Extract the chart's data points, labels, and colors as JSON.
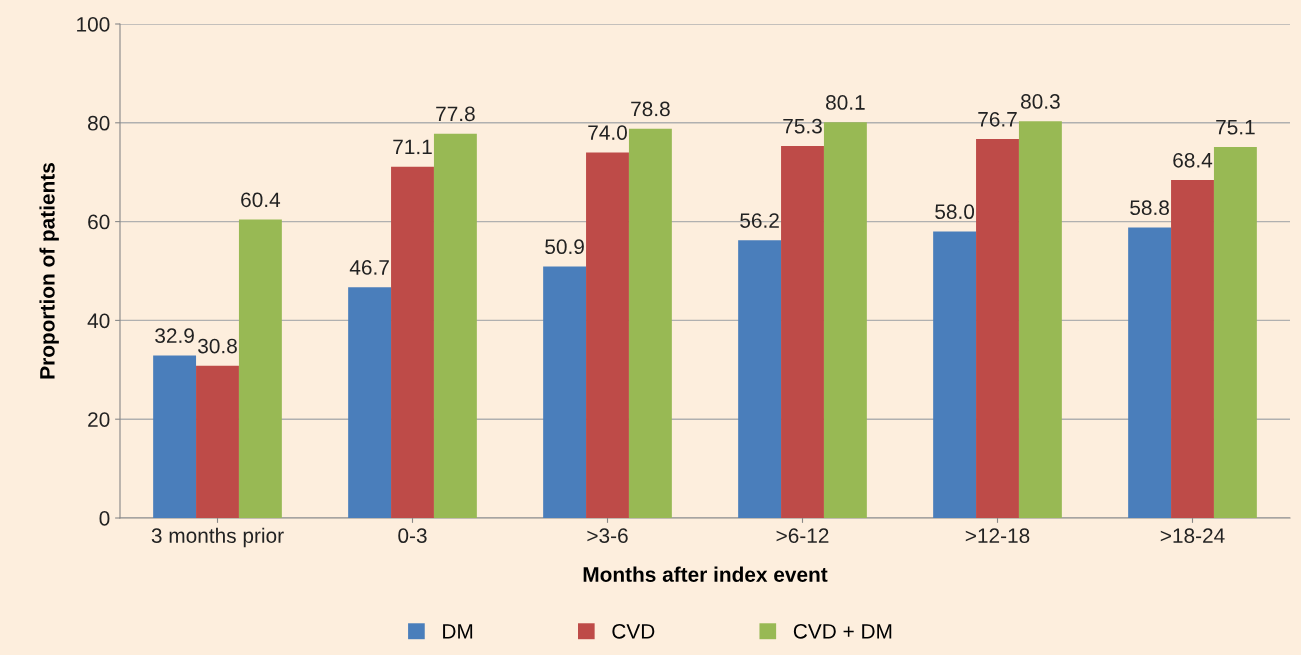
{
  "chart_data": {
    "type": "bar",
    "xlabel": "Months after index event",
    "ylabel": "Proportion of patients",
    "categories": [
      "3 months prior",
      "0-3",
      ">3-6",
      ">6-12",
      ">12-18",
      ">18-24"
    ],
    "series": [
      {
        "name": "DM",
        "color": "#4a7ebb",
        "values": [
          32.9,
          46.7,
          50.9,
          56.2,
          58.0,
          58.8
        ],
        "value_labels": [
          "32.9",
          "46.7",
          "50.9",
          "56.2",
          "58.0",
          "58.8"
        ]
      },
      {
        "name": "CVD",
        "color": "#be4b48",
        "values": [
          30.8,
          71.1,
          74.0,
          75.3,
          76.7,
          68.4
        ],
        "value_labels": [
          "30.8",
          "71.1",
          "74.0",
          "75.3",
          "76.7",
          "68.4"
        ]
      },
      {
        "name": "CVD + DM",
        "color": "#98b954",
        "values": [
          60.4,
          77.8,
          78.8,
          80.1,
          80.3,
          75.1
        ],
        "value_labels": [
          "60.4",
          "77.8",
          "78.8",
          "80.1",
          "80.3",
          "75.1"
        ]
      }
    ],
    "ylim": [
      0,
      100
    ],
    "yticks": [
      0,
      20,
      40,
      60,
      80,
      100
    ],
    "grid": "y",
    "legend": "bottom"
  }
}
